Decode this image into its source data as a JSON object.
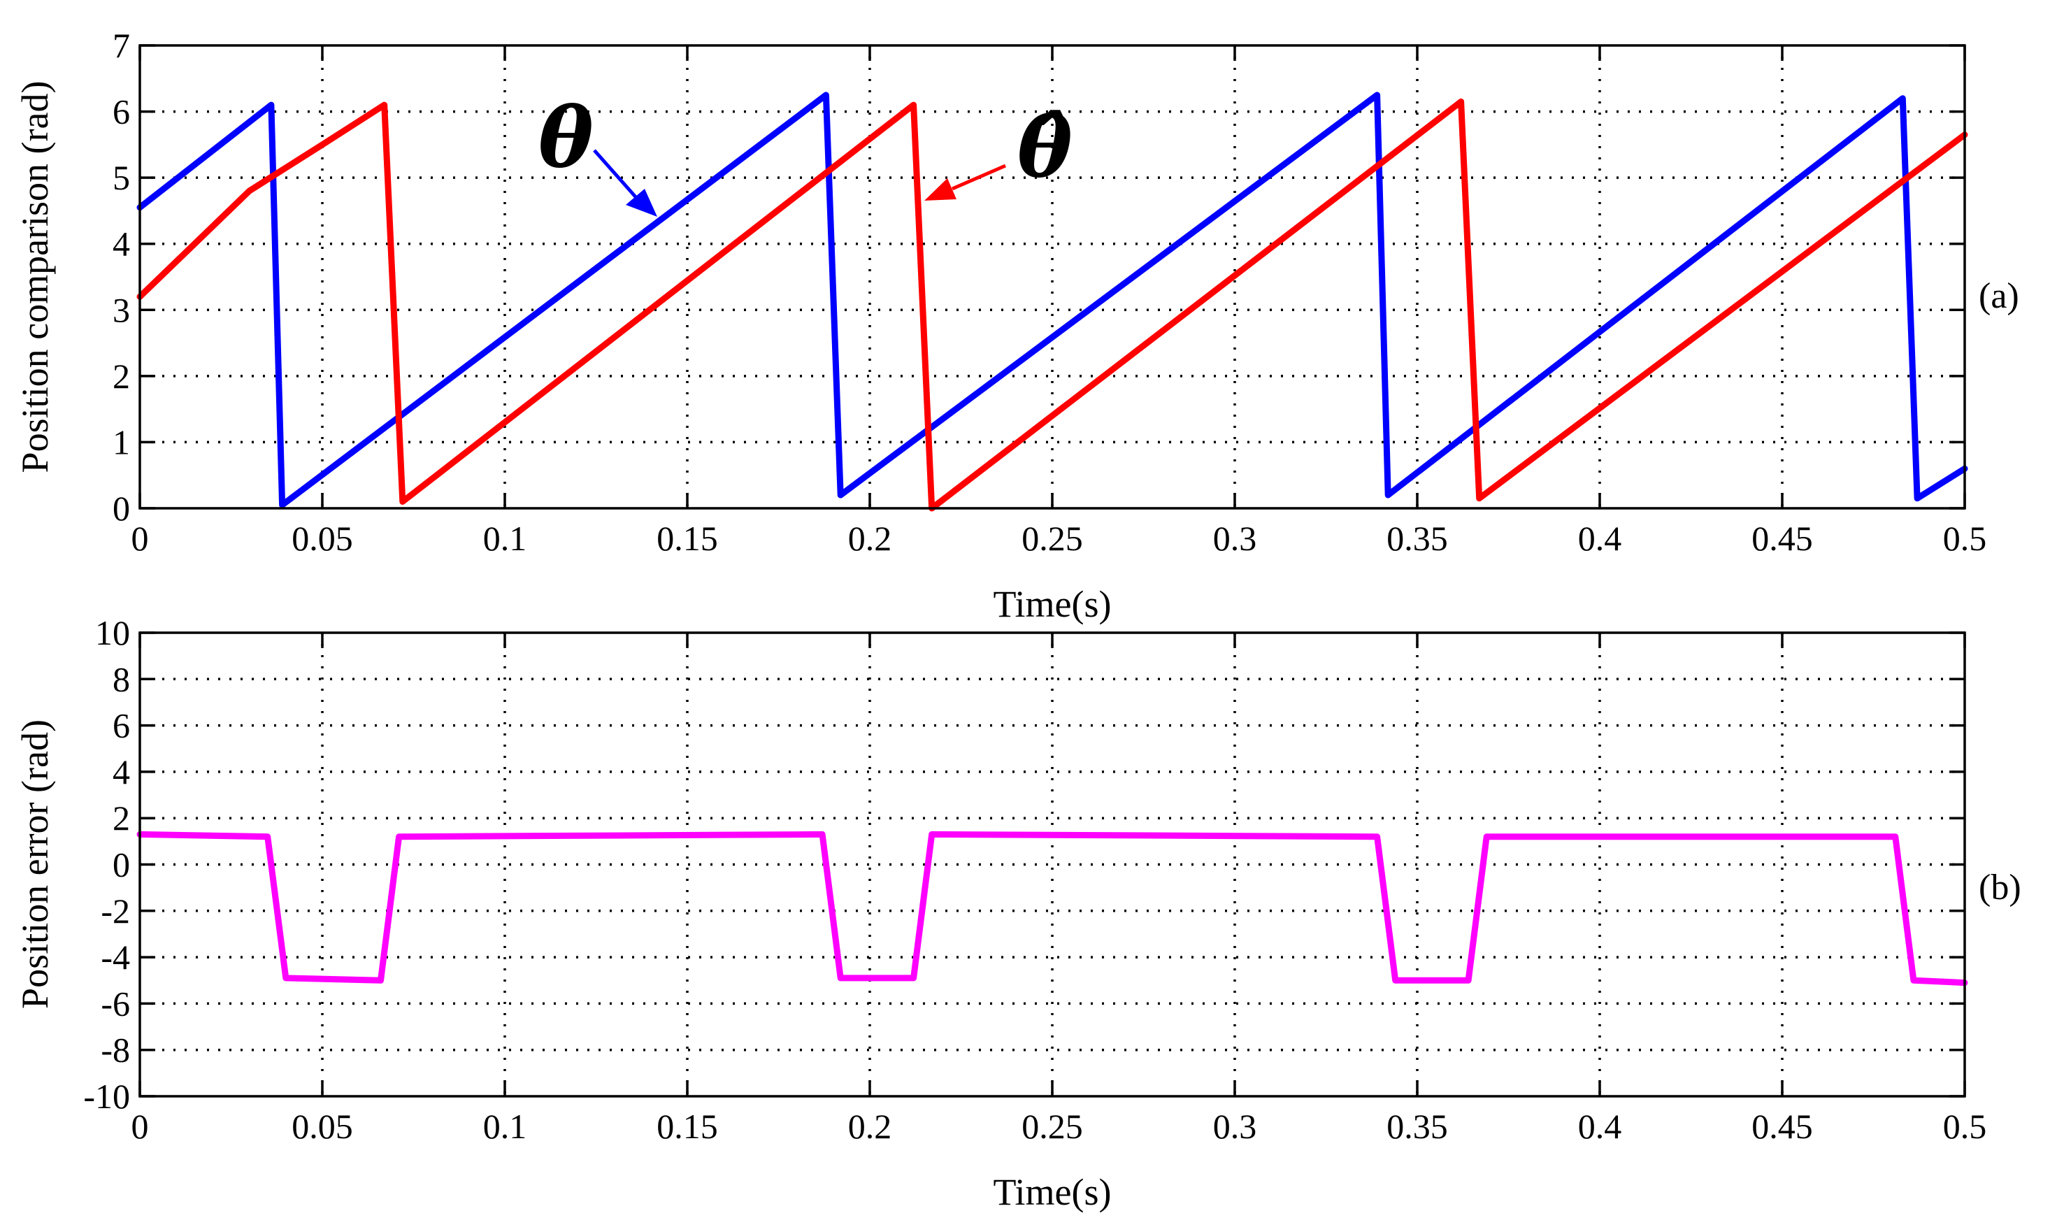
{
  "colors": {
    "theta": "#0000ff",
    "theta_hat": "#ff0000",
    "error": "#ff00ff"
  },
  "chart_data": [
    {
      "type": "line",
      "panel": "(a)",
      "xlabel": "Time(s)",
      "ylabel": "Position comparison (rad)",
      "xlim": [
        0,
        0.5
      ],
      "ylim": [
        0,
        7
      ],
      "xticks": [
        0,
        0.05,
        0.1,
        0.15,
        0.2,
        0.25,
        0.3,
        0.35,
        0.4,
        0.45,
        0.5
      ],
      "xtick_labels": [
        "0",
        "0.05",
        "0.1",
        "0.15",
        "0.2",
        "0.25",
        "0.3",
        "0.35",
        "0.4",
        "0.45",
        "0.5"
      ],
      "yticks": [
        0,
        1,
        2,
        3,
        4,
        5,
        6,
        7
      ],
      "ytick_labels": [
        "0",
        "1",
        "2",
        "3",
        "4",
        "5",
        "6",
        "7"
      ],
      "grid": true,
      "annotations": [
        "θ",
        "θ̂"
      ],
      "series": [
        {
          "name": "θ",
          "color": "#0000ff",
          "x": [
            0,
            0.036,
            0.039,
            0.188,
            0.192,
            0.339,
            0.342,
            0.483,
            0.487,
            0.5
          ],
          "y": [
            4.55,
            6.1,
            0.05,
            6.25,
            0.2,
            6.25,
            0.2,
            6.2,
            0.15,
            0.6
          ]
        },
        {
          "name": "θ̂",
          "color": "#ff0000",
          "x": [
            0,
            0.03,
            0.05,
            0.067,
            0.072,
            0.212,
            0.217,
            0.362,
            0.367,
            0.5
          ],
          "y": [
            3.2,
            4.8,
            5.5,
            6.1,
            0.1,
            6.1,
            0.0,
            6.15,
            0.15,
            5.65
          ]
        }
      ]
    },
    {
      "type": "line",
      "panel": "(b)",
      "xlabel": "Time(s)",
      "ylabel": "Position error (rad)",
      "xlim": [
        0,
        0.5
      ],
      "ylim": [
        -10,
        10
      ],
      "xticks": [
        0,
        0.05,
        0.1,
        0.15,
        0.2,
        0.25,
        0.3,
        0.35,
        0.4,
        0.45,
        0.5
      ],
      "xtick_labels": [
        "0",
        "0.05",
        "0.1",
        "0.15",
        "0.2",
        "0.25",
        "0.3",
        "0.35",
        "0.4",
        "0.45",
        "0.5"
      ],
      "yticks": [
        -10,
        -8,
        -6,
        -4,
        -2,
        0,
        2,
        4,
        6,
        8,
        10
      ],
      "ytick_labels": [
        "-10",
        "-8",
        "-6",
        "-4",
        "-2",
        "0",
        "2",
        "4",
        "6",
        "8",
        "10"
      ],
      "grid": true,
      "series": [
        {
          "name": "Position error",
          "color": "#ff00ff",
          "x": [
            0,
            0.035,
            0.04,
            0.066,
            0.071,
            0.187,
            0.192,
            0.212,
            0.217,
            0.339,
            0.344,
            0.364,
            0.369,
            0.481,
            0.486,
            0.5
          ],
          "y": [
            1.3,
            1.2,
            -4.9,
            -5.0,
            1.2,
            1.3,
            -4.9,
            -4.9,
            1.3,
            1.2,
            -5.0,
            -5.0,
            1.2,
            1.2,
            -5.0,
            -5.1
          ]
        }
      ]
    }
  ]
}
